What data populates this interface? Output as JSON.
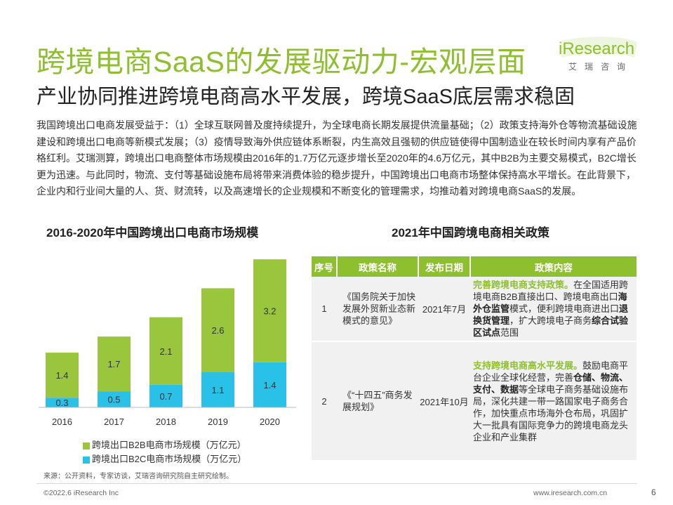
{
  "header": {
    "title": "跨境电商SaaS的发展驱动力-宏观层面",
    "subtitle": "产业协同推进跨境电商高水平发展，跨境SaaS底层需求稳固",
    "logo_text": "iResearch",
    "logo_sub": "艾瑞咨询"
  },
  "intro": "我国跨境出口电商发展受益于：（1）全球互联网普及度持续提升，为全球电商长期发展提供流量基础；（2）政策支持海外仓等物流基础设施建设和跨境出口电商等新模式发展；（3）疫情导致海外供应链体系断裂，内生高效且强韧的供应链使得中国制造业在较长时间内享有产品价格红利。艾瑞测算，跨境出口电商整体市场规模由2016年的1.7万亿元逐步增长至2020年的4.6万亿元，其中B2B为主要交易模式，B2C增长更为迅速。与此同时，物流、支付等基础设施布局将带来消费体验的稳步提升，中国跨境出口电商市场整体保持高水平增长。在此背景下，企业内和行业间大量的人、货、财流转，以及高速增长的企业规模和不断变化的管理需求，均推动着对跨境电商SaaS的发展。",
  "chart_data": {
    "type": "bar",
    "stacked": true,
    "title": "2016-2020年中国跨境出口电商市场规模",
    "categories": [
      "2016",
      "2017",
      "2018",
      "2019",
      "2020"
    ],
    "series": [
      {
        "name": "跨境出口B2C电商市场规模（万亿元）",
        "values": [
          0.3,
          0.5,
          0.7,
          1.1,
          1.4
        ],
        "color": "#29c1e7"
      },
      {
        "name": "跨境出口B2B电商市场规模（万亿元）",
        "values": [
          1.4,
          1.7,
          2.1,
          2.6,
          3.2
        ],
        "color": "#9ac63d"
      }
    ],
    "legend": [
      "跨境出口B2B电商市场规模（万亿元）",
      "跨境出口B2C电商市场规模（万亿元）"
    ],
    "legend_position": "bottom",
    "ylim": [
      0,
      4.8
    ],
    "grid": false
  },
  "policy": {
    "title": "2021年中国跨境电商相关政策",
    "headers": [
      "序号",
      "政策名称",
      "发布日期",
      "政策内容"
    ],
    "rows": [
      {
        "num": "1",
        "name": "《国务院关于加快发展外贸新业态新模式的意见》",
        "date": "2021年7月",
        "content": [
          {
            "t": "完善跨境电商支持政策。",
            "s": "hl"
          },
          {
            "t": "在全国适用跨境电商B2B直接出口、跨境电商出口",
            "s": ""
          },
          {
            "t": "海外仓监管",
            "s": "bd"
          },
          {
            "t": "模式，便利跨境电商进出口",
            "s": ""
          },
          {
            "t": "退换货管理",
            "s": "bd"
          },
          {
            "t": "，扩大跨境电子商务",
            "s": ""
          },
          {
            "t": "综合试验区试点",
            "s": "bd"
          },
          {
            "t": "范围",
            "s": ""
          }
        ]
      },
      {
        "num": "2",
        "name": "《“十四五”商务发展规划》",
        "date": "2021年10月",
        "content": [
          {
            "t": "支持跨境电商高水平发展。",
            "s": "hl"
          },
          {
            "t": "鼓励电商平台企业全球化经营，完善",
            "s": ""
          },
          {
            "t": "仓储、物流、支付、数据",
            "s": "bd"
          },
          {
            "t": "等全球电子商务基础设施布局，深化共建一带一路国家电子商务合作，加快重点市场海外仓布局，巩固扩大一批具有国际竞争力的跨境电商龙头企业和产业集群",
            "s": ""
          }
        ]
      }
    ]
  },
  "footer": {
    "source": "来源：公开资料，专家访谈，艾瑞咨询研究院自主研究绘制。",
    "copyright": "©2022.6 iResearch Inc",
    "site": "www.iresearch.com.cn",
    "page": "6"
  }
}
